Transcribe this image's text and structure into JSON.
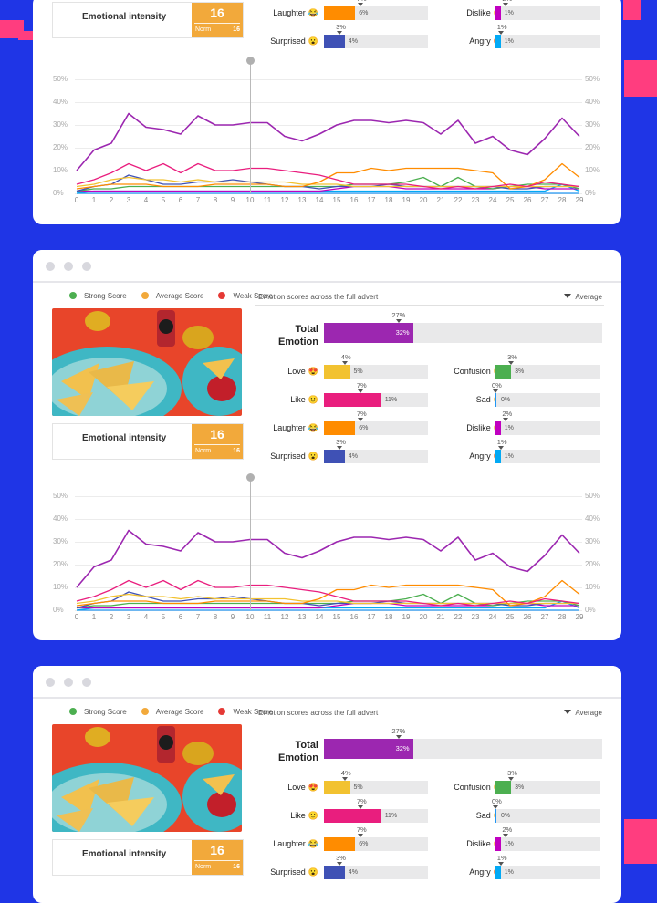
{
  "legend": {
    "strong": {
      "label": "Strong Score",
      "color": "#4caf50"
    },
    "average": {
      "label": "Average Score",
      "color": "#f2a93b"
    },
    "weak": {
      "label": "Weak Score",
      "color": "#e53935"
    }
  },
  "header": {
    "title": "Emotion scores across the full advert",
    "dropdown": "Average"
  },
  "intensity": {
    "label": "Emotional intensity",
    "value": "16",
    "norm_label": "Norm",
    "norm_value": "16"
  },
  "total": {
    "label": "Total Emotion",
    "value": "32%",
    "value_num": 32,
    "norm": "27%",
    "norm_num": 27,
    "color": "#9c27b0"
  },
  "emotions": [
    {
      "label": "Love",
      "emoji": "😍",
      "value": "5%",
      "value_num": 5,
      "norm": "4%",
      "norm_num": 4,
      "color": "#f2c230"
    },
    {
      "label": "Confusion",
      "emoji": "😕",
      "value": "3%",
      "value_num": 3,
      "norm": "3%",
      "norm_num": 3,
      "color": "#4caf50"
    },
    {
      "label": "Like",
      "emoji": "🙂",
      "value": "11%",
      "value_num": 11,
      "norm": "7%",
      "norm_num": 7,
      "color": "#e91e7e"
    },
    {
      "label": "Sad",
      "emoji": "😢",
      "value": "0%",
      "value_num": 0,
      "norm": "0%",
      "norm_num": 0,
      "color": "#2196f3"
    },
    {
      "label": "Laughter",
      "emoji": "😂",
      "value": "6%",
      "value_num": 6,
      "norm": "7%",
      "norm_num": 7,
      "color": "#ff8c00"
    },
    {
      "label": "Dislike",
      "emoji": "😒",
      "value": "1%",
      "value_num": 1,
      "norm": "2%",
      "norm_num": 2,
      "color": "#c000c0"
    },
    {
      "label": "Surprised",
      "emoji": "😮",
      "value": "4%",
      "value_num": 4,
      "norm": "3%",
      "norm_num": 3,
      "color": "#3f51b5"
    },
    {
      "label": "Angry",
      "emoji": "😡",
      "value": "1%",
      "value_num": 1,
      "norm": "1%",
      "norm_num": 1,
      "color": "#03a9f4"
    }
  ],
  "chart_data": {
    "type": "line",
    "x": [
      0,
      1,
      2,
      3,
      4,
      5,
      6,
      7,
      8,
      9,
      10,
      11,
      12,
      13,
      14,
      15,
      16,
      17,
      18,
      19,
      20,
      21,
      22,
      23,
      24,
      25,
      26,
      27,
      28,
      29
    ],
    "ylim": [
      0,
      50
    ],
    "y_ticks": [
      "0%",
      "10%",
      "20%",
      "30%",
      "40%",
      "50%"
    ],
    "x_ticks": [
      "0",
      "1",
      "2",
      "3",
      "4",
      "5",
      "6",
      "7",
      "8",
      "9",
      "10",
      "11",
      "12",
      "13",
      "14",
      "15",
      "16",
      "17",
      "18",
      "19",
      "20",
      "21",
      "22",
      "23",
      "24",
      "25",
      "26",
      "27",
      "28",
      "29"
    ],
    "playhead_x": 10,
    "series": [
      {
        "name": "Total Emotion",
        "color": "#9c27b0",
        "values": [
          10,
          19,
          22,
          35,
          29,
          28,
          26,
          34,
          30,
          30,
          31,
          31,
          25,
          23,
          26,
          30,
          32,
          32,
          31,
          32,
          31,
          26,
          32,
          22,
          25,
          19,
          17,
          24,
          33,
          25
        ]
      },
      {
        "name": "Like",
        "color": "#e91e7e",
        "values": [
          4,
          6,
          9,
          13,
          10,
          13,
          9,
          13,
          10,
          10,
          11,
          11,
          10,
          9,
          8,
          6,
          4,
          4,
          4,
          4,
          3,
          2,
          3,
          2,
          3,
          4,
          3,
          5,
          4,
          3
        ]
      },
      {
        "name": "Laughter",
        "color": "#ff8c00",
        "values": [
          2,
          3,
          4,
          4,
          4,
          3,
          3,
          3,
          4,
          4,
          4,
          4,
          3,
          3,
          5,
          9,
          9,
          11,
          10,
          11,
          11,
          11,
          11,
          10,
          9,
          2,
          3,
          6,
          13,
          7
        ]
      },
      {
        "name": "Love",
        "color": "#f2c230",
        "values": [
          3,
          4,
          6,
          7,
          6,
          6,
          5,
          6,
          5,
          5,
          5,
          5,
          5,
          4,
          4,
          4,
          3,
          3,
          3,
          3,
          3,
          3,
          3,
          3,
          3,
          3,
          3,
          3,
          3,
          3
        ]
      },
      {
        "name": "Surprised",
        "color": "#3f51b5",
        "values": [
          1,
          3,
          4,
          8,
          6,
          4,
          4,
          5,
          5,
          6,
          5,
          4,
          3,
          3,
          2,
          3,
          3,
          3,
          4,
          3,
          3,
          3,
          3,
          3,
          3,
          2,
          2,
          3,
          3,
          3
        ]
      },
      {
        "name": "Confusion",
        "color": "#4caf50",
        "values": [
          1,
          2,
          2,
          3,
          3,
          3,
          3,
          3,
          3,
          3,
          3,
          3,
          3,
          3,
          3,
          3,
          4,
          4,
          4,
          5,
          7,
          3,
          7,
          3,
          2,
          3,
          4,
          4,
          4,
          2
        ]
      },
      {
        "name": "Dislike",
        "color": "#c000c0",
        "values": [
          1,
          1,
          1,
          1,
          1,
          1,
          1,
          1,
          1,
          1,
          1,
          1,
          1,
          1,
          1,
          2,
          3,
          3,
          3,
          2,
          2,
          2,
          2,
          2,
          2,
          3,
          3,
          2,
          2,
          2
        ]
      },
      {
        "name": "Angry",
        "color": "#03a9f4",
        "values": [
          0,
          1,
          1,
          1,
          1,
          1,
          1,
          1,
          1,
          1,
          1,
          1,
          1,
          1,
          1,
          1,
          1,
          1,
          1,
          1,
          1,
          1,
          1,
          1,
          1,
          1,
          1,
          1,
          4,
          1
        ]
      },
      {
        "name": "Sad",
        "color": "#2196f3",
        "values": [
          0,
          0,
          0,
          0,
          0,
          0,
          0,
          0,
          0,
          0,
          0,
          0,
          0,
          0,
          0,
          0,
          0,
          0,
          0,
          0,
          0,
          0,
          0,
          0,
          0,
          0,
          0,
          0,
          0,
          0
        ]
      }
    ]
  }
}
